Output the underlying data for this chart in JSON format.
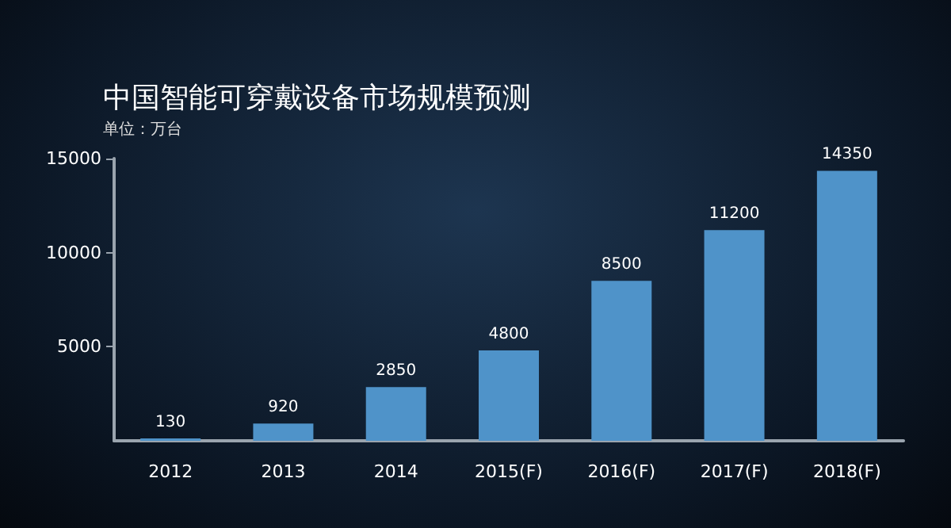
{
  "chart_data": {
    "type": "bar",
    "title": "中国智能可穿戴设备市场规模预测",
    "subtitle": "单位：万台",
    "categories": [
      "2012",
      "2013",
      "2014",
      "2015(F)",
      "2016(F)",
      "2017(F)",
      "2018(F)"
    ],
    "values": [
      130,
      920,
      2850,
      4800,
      8500,
      11200,
      14350
    ],
    "color": "#4f93c9",
    "ylim": [
      0,
      15000
    ],
    "yticks": [
      5000,
      10000,
      15000
    ],
    "data_labels": true,
    "grid": false
  }
}
